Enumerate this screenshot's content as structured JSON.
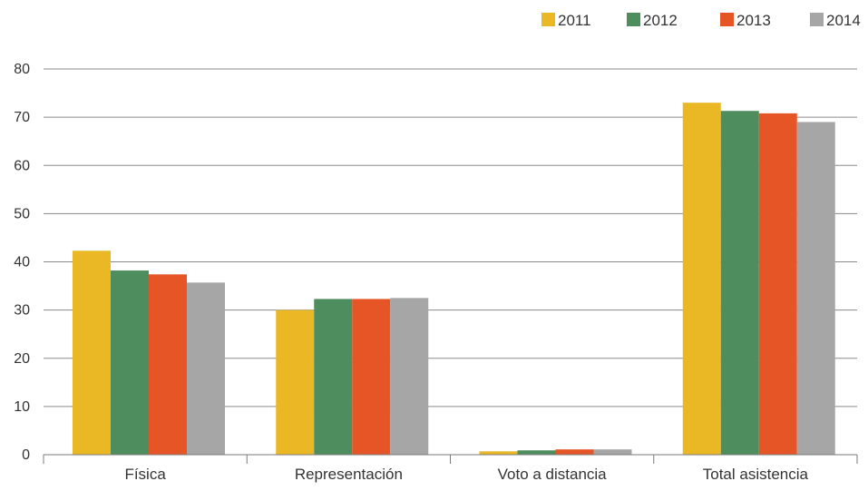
{
  "chart_data": {
    "type": "bar",
    "title": "",
    "xlabel": "",
    "ylabel": "",
    "categories": [
      "Física",
      "Representación",
      "Voto a distancia",
      "Total asistencia"
    ],
    "series": [
      {
        "name": "2011",
        "color": "#E9B824",
        "values": [
          42.3,
          30.0,
          0.7,
          73.0
        ]
      },
      {
        "name": "2012",
        "color": "#4E8E5E",
        "values": [
          38.2,
          32.3,
          0.9,
          71.3
        ]
      },
      {
        "name": "2013",
        "color": "#E55526",
        "values": [
          37.4,
          32.3,
          1.1,
          70.8
        ]
      },
      {
        "name": "2014",
        "color": "#A6A6A6",
        "values": [
          35.7,
          32.5,
          1.1,
          69.0
        ]
      }
    ],
    "ylim": [
      0,
      80
    ],
    "yticks": [
      0,
      10,
      20,
      30,
      40,
      50,
      60,
      70,
      80
    ],
    "grid": true,
    "legend_position": "top-right"
  }
}
